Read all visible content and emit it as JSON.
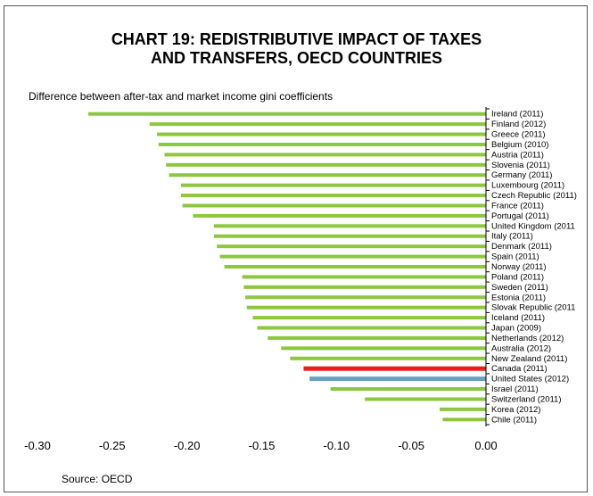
{
  "chart_data": {
    "type": "bar",
    "orientation": "horizontal",
    "title_lines": [
      "CHART 19: REDISTRIBUTIVE IMPACT OF TAXES",
      "AND TRANSFERS, OECD COUNTRIES"
    ],
    "subtitle": "Difference between after-tax and market income gini coefficients",
    "source": "Source: OECD",
    "xlim": [
      -0.3,
      0.0
    ],
    "xticks": [
      -0.3,
      -0.25,
      -0.2,
      -0.15,
      -0.1,
      -0.05,
      0.0
    ],
    "xtick_labels": [
      "-0.30",
      "-0.25",
      "-0.20",
      "-0.15",
      "-0.10",
      "-0.05",
      "0.00"
    ],
    "grid": false,
    "legend": "none",
    "default_color": "#8dc63f",
    "categories": [
      "Ireland (2011)",
      "Finland (2012)",
      "Greece (2011)",
      "Belgium (2010)",
      "Austria (2011)",
      "Slovenia (2011)",
      "Germany (2011)",
      "Luxembourg (2011)",
      "Czech Republic (2011)",
      "France (2011)",
      "Portugal (2011)",
      "United Kingdom (2011",
      "Italy (2011)",
      "Denmark (2011)",
      "Spain (2011)",
      "Norway (2011)",
      "Poland (2011)",
      "Sweden (2011)",
      "Estonia (2011)",
      "Slovak Republic (2011",
      "Iceland (2011)",
      "Japan (2009)",
      "Netherlands (2012)",
      "Australia (2012)",
      "New Zealand (2011)",
      "Canada (2011)",
      "United States (2012)",
      "Israel (2011)",
      "Switzerland (2011)",
      "Korea (2012)",
      "Chile (2011)"
    ],
    "values": [
      -0.266,
      -0.225,
      -0.22,
      -0.219,
      -0.215,
      -0.214,
      -0.212,
      -0.204,
      -0.204,
      -0.203,
      -0.196,
      -0.182,
      -0.182,
      -0.18,
      -0.178,
      -0.175,
      -0.163,
      -0.162,
      -0.161,
      -0.16,
      -0.156,
      -0.153,
      -0.146,
      -0.137,
      -0.131,
      -0.122,
      -0.118,
      -0.104,
      -0.081,
      -0.031,
      -0.029
    ],
    "highlights": {
      "Canada (2011)": "#ee1c1c",
      "United States (2012)": "#6aa0bf"
    }
  }
}
